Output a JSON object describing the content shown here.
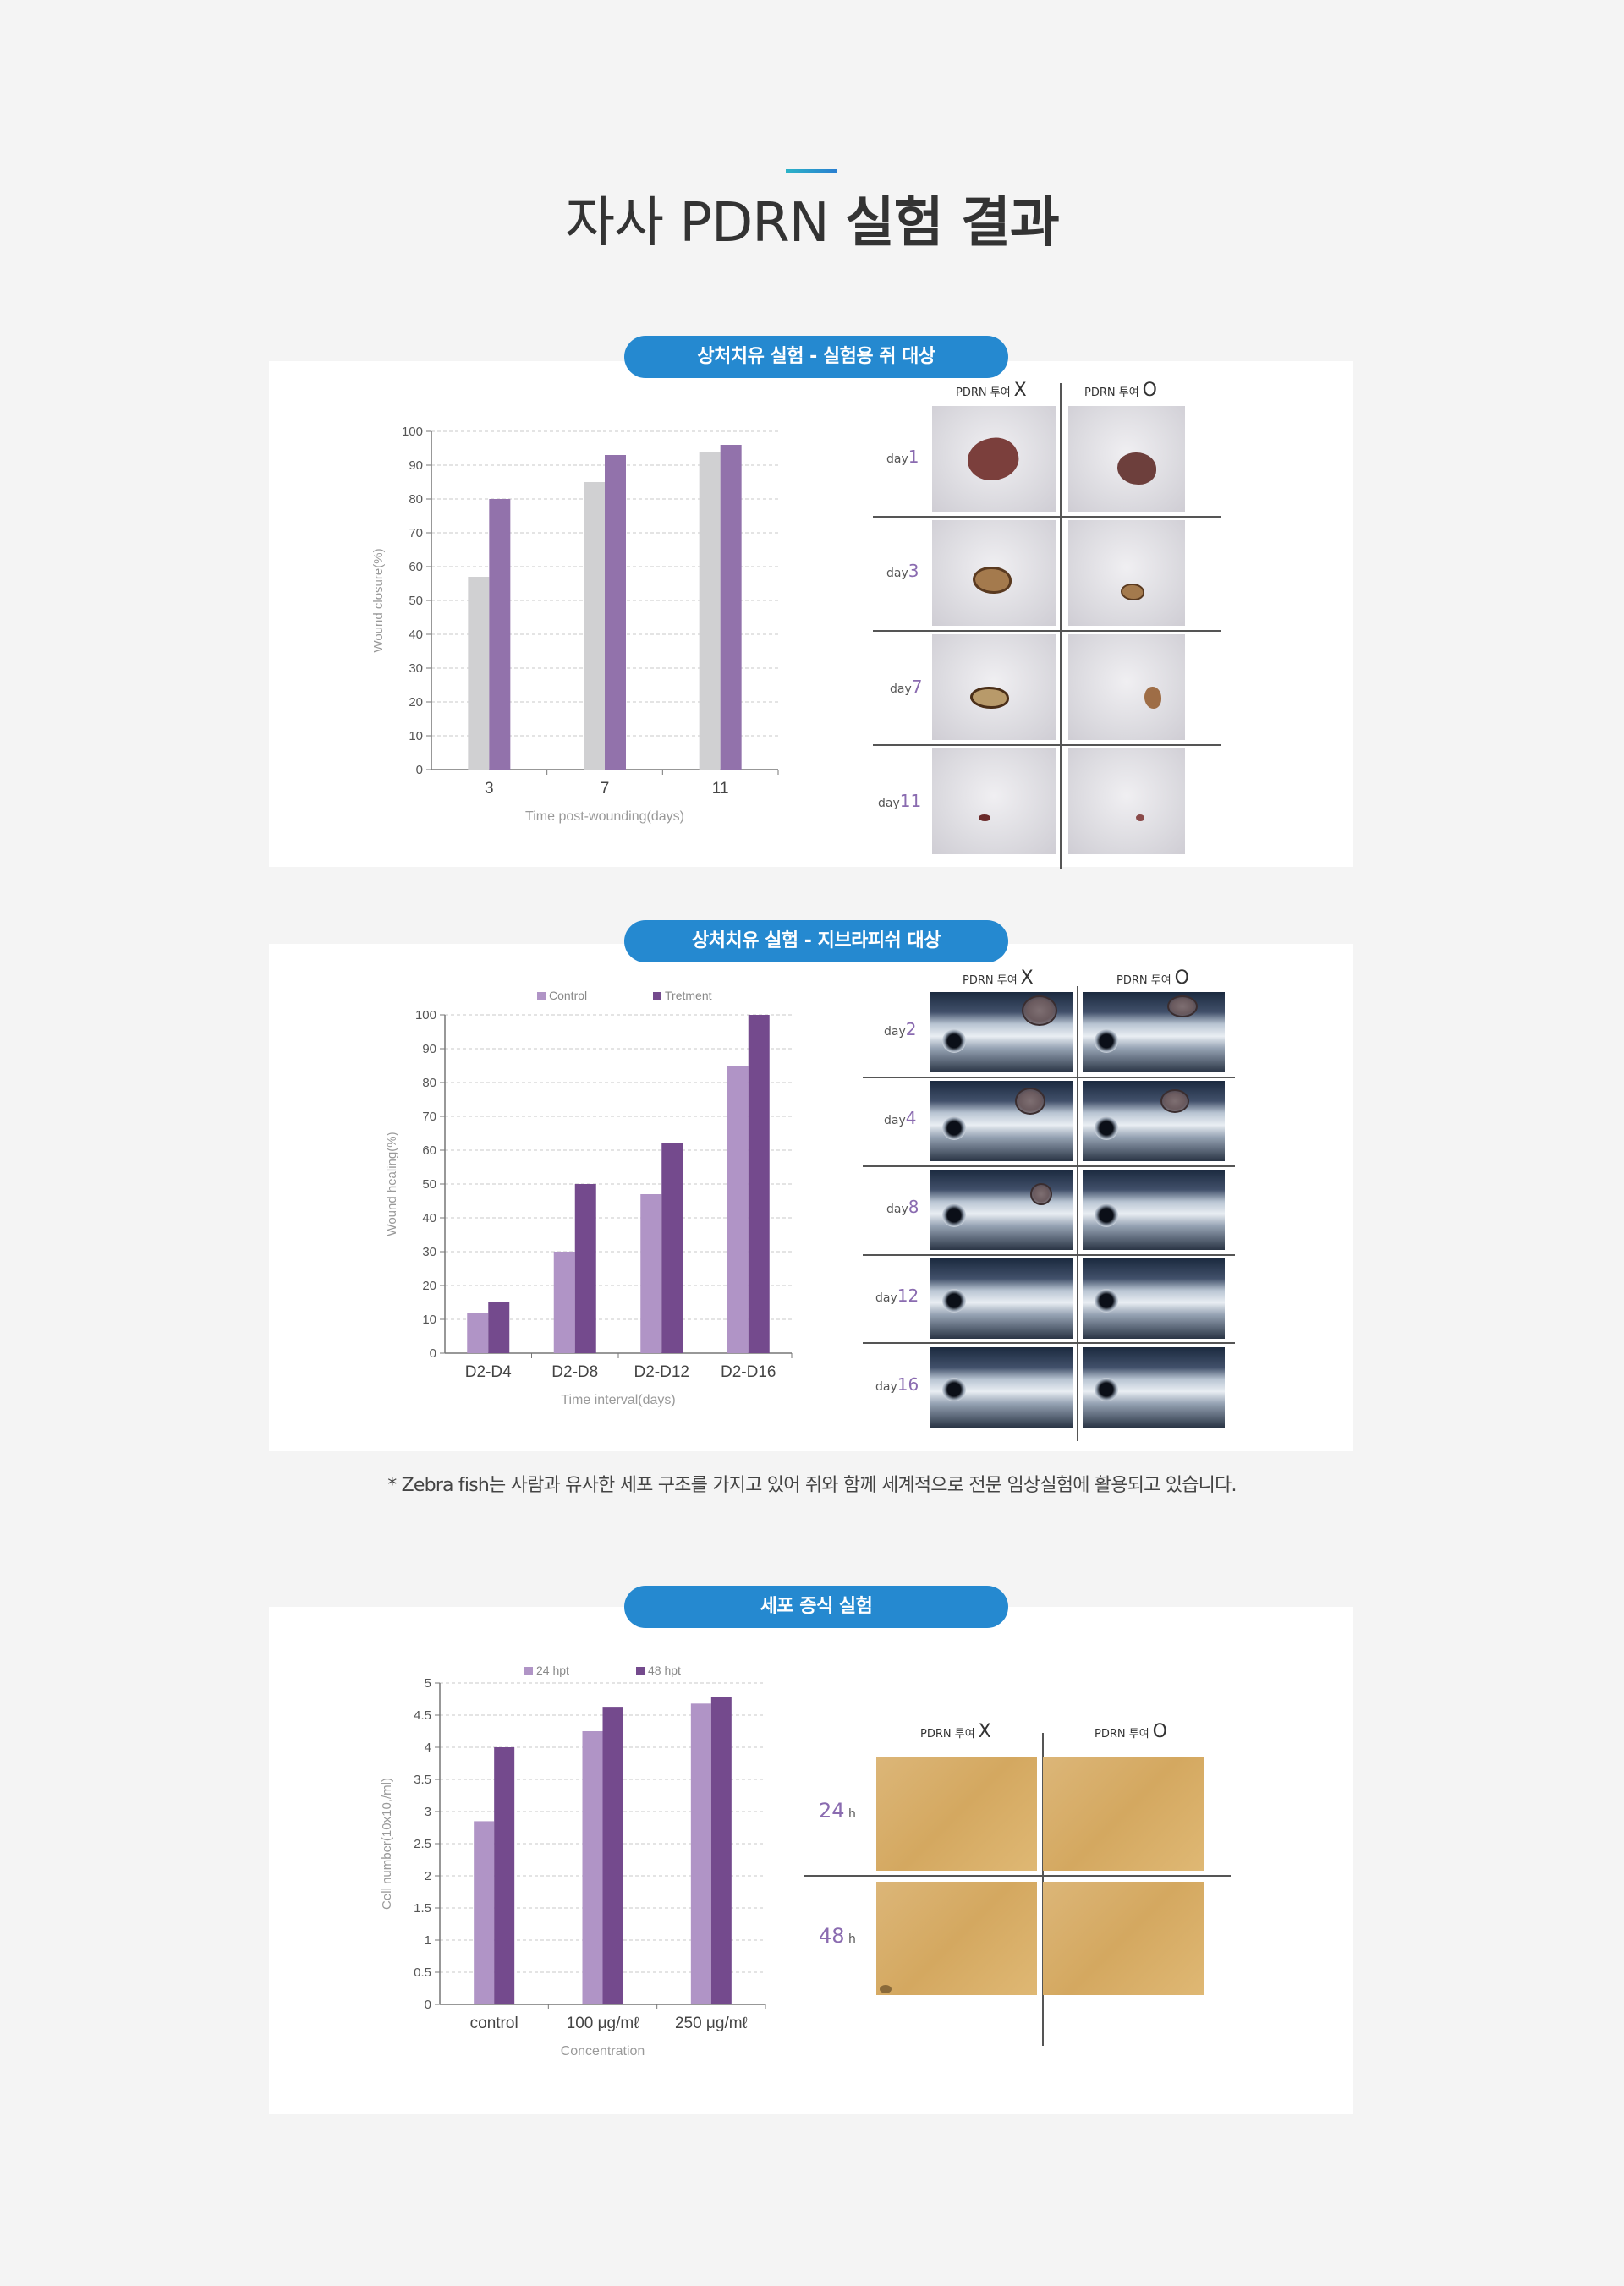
{
  "title": {
    "light": "자사 PDRN",
    "bold": "실험 결과"
  },
  "section1": {
    "pill": "상처치유 실험 - 실험용 쥐 대상",
    "photos": {
      "col_without": {
        "label": "PDRN 투여",
        "mark": "X"
      },
      "col_with": {
        "label": "PDRN 투여",
        "mark": "O"
      },
      "rows": [
        {
          "prefix": "day",
          "num": "1"
        },
        {
          "prefix": "day",
          "num": "3"
        },
        {
          "prefix": "day",
          "num": "7"
        },
        {
          "prefix": "day",
          "num": "11"
        }
      ]
    }
  },
  "section2": {
    "pill": "상처치유 실험 - 지브라피쉬 대상",
    "photos": {
      "col_without": {
        "label": "PDRN 투여",
        "mark": "X"
      },
      "col_with": {
        "label": "PDRN 투여",
        "mark": "O"
      },
      "rows": [
        {
          "prefix": "day",
          "num": "2"
        },
        {
          "prefix": "day",
          "num": "4"
        },
        {
          "prefix": "day",
          "num": "8"
        },
        {
          "prefix": "day",
          "num": "12"
        },
        {
          "prefix": "day",
          "num": "16"
        }
      ]
    }
  },
  "footnote": "* Zebra fish는 사람과 유사한 세포 구조를 가지고 있어 쥐와 함께 세계적으로 전문 임상실험에 활용되고 있습니다.",
  "section3": {
    "pill": "세포 증식 실험",
    "photos": {
      "col_without": {
        "label": "PDRN 투여",
        "mark": "X"
      },
      "col_with": {
        "label": "PDRN 투여",
        "mark": "O"
      },
      "rows": [
        {
          "num": "24",
          "suffix": "h"
        },
        {
          "num": "48",
          "suffix": "h"
        }
      ]
    }
  },
  "colors": {
    "gray_bar": "#d0d0d2",
    "purple_bar": "#9272ab",
    "light_purple": "#b094c6",
    "dark_purple": "#744a8d",
    "pill": "#2589d0"
  },
  "chart_data": [
    {
      "type": "bar",
      "xlabel": "Time post-wounding(days)",
      "ylabel": "Wound closure(%)",
      "ylim": [
        0,
        100
      ],
      "yticks": [
        "0",
        "10",
        "20",
        "30",
        "40",
        "50",
        "60",
        "70",
        "80",
        "90",
        "100"
      ],
      "categories": [
        "3",
        "7",
        "11"
      ],
      "series": [
        {
          "values": [
            57,
            85,
            94
          ],
          "color": "#d0d0d2"
        },
        {
          "values": [
            80,
            93,
            96
          ],
          "color": "#9272ab"
        }
      ],
      "grid": true
    },
    {
      "type": "bar",
      "xlabel": "Time interval(days)",
      "ylabel": "Wound healing(%)",
      "ylim": [
        0,
        100
      ],
      "yticks": [
        "0",
        "10",
        "20",
        "30",
        "40",
        "50",
        "60",
        "70",
        "80",
        "90",
        "100"
      ],
      "categories": [
        "D2-D4",
        "D2-D8",
        "D2-D12",
        "D2-D16"
      ],
      "series": [
        {
          "name": "Control",
          "values": [
            12,
            30,
            47,
            85
          ],
          "color": "#b094c6"
        },
        {
          "name": "Tretment",
          "values": [
            15,
            50,
            62,
            100
          ],
          "color": "#744a8d"
        }
      ],
      "legend": "top",
      "grid": true
    },
    {
      "type": "bar",
      "xlabel": "Concentration",
      "ylabel": "Cell number(10x10,/ml)",
      "ylim": [
        0,
        5
      ],
      "yticks": [
        "0",
        "0.5",
        "1",
        "1.5",
        "2",
        "2.5",
        "3",
        "3.5",
        "4",
        "4.5",
        "5"
      ],
      "categories": [
        "control",
        "100 μg/mℓ",
        "250 μg/mℓ"
      ],
      "series": [
        {
          "name": "24 hpt",
          "values": [
            2.85,
            4.25,
            4.68
          ],
          "color": "#b094c6"
        },
        {
          "name": "48 hpt",
          "values": [
            4.0,
            4.63,
            4.78
          ],
          "color": "#744a8d"
        }
      ],
      "legend": "top",
      "grid": true
    }
  ]
}
